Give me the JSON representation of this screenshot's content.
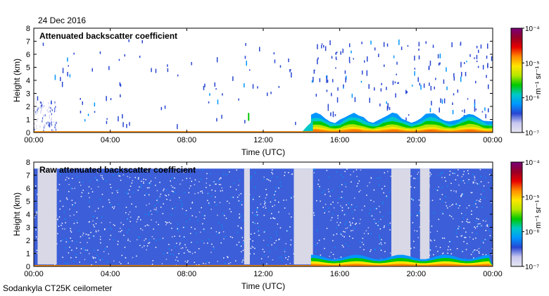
{
  "header": {
    "date": "24 Dec 2016"
  },
  "footer": {
    "instrument": "Sodankyla CT25K ceilometer"
  },
  "colorscale": {
    "stops": [
      "#e6e6f2",
      "#c8c8f0",
      "#2846d2",
      "#0096ff",
      "#00c8c8",
      "#00c800",
      "#b4e600",
      "#ffe600",
      "#ff8c00",
      "#e60000",
      "#960028",
      "#780078"
    ],
    "min_exponent": -7,
    "max_exponent": -4
  },
  "chart_data": [
    {
      "type": "heatmap",
      "title": "Attenuated backscatter coefficient",
      "xlabel": "Time (UTC)",
      "ylabel": "Height (km)",
      "x_ticks": [
        "00:00",
        "04:00",
        "08:00",
        "12:00",
        "16:00",
        "20:00",
        "00:00"
      ],
      "y_ticks": [
        "0",
        "1",
        "2",
        "3",
        "4",
        "5",
        "6",
        "7",
        "8"
      ],
      "xlim_hours": [
        0,
        24
      ],
      "ylim_km": [
        0,
        8
      ],
      "colorbar": {
        "ticks": [
          "10⁻⁷",
          "10⁻⁶",
          "10⁻⁵",
          "10⁻⁴"
        ],
        "label": "m⁻¹ sr⁻¹",
        "scale": "log",
        "range": [
          1e-07,
          0.0001
        ]
      },
      "features": {
        "boundary_layer_top_km": 0.1,
        "cloud_layer_after_hour": 14.5,
        "cloud_layer_top_km": 1.4,
        "precipitation_streaks_hours": [
          14.5,
          24
        ]
      },
      "grid": false
    },
    {
      "type": "heatmap",
      "title": "Raw attenuated backscatter coefficient",
      "xlabel": "Time (UTC)",
      "ylabel": "Height (km)",
      "x_ticks": [
        "00:00",
        "04:00",
        "08:00",
        "12:00",
        "16:00",
        "20:00",
        "00:00"
      ],
      "y_ticks": [
        "0",
        "1",
        "2",
        "3",
        "4",
        "5",
        "6",
        "7",
        "8"
      ],
      "xlim_hours": [
        0,
        24
      ],
      "ylim_km": [
        0,
        8
      ],
      "colorbar": {
        "ticks": [
          "10⁻⁷",
          "10⁻⁶",
          "10⁻⁵",
          "10⁻⁴"
        ],
        "label": "m⁻¹ sr⁻¹",
        "scale": "log",
        "range": [
          1e-07,
          0.0001
        ]
      },
      "features": {
        "noise_top_km": 7.5,
        "data_gaps_hours": [
          [
            0.2,
            1.2
          ],
          [
            11.0,
            11.3
          ],
          [
            13.6,
            14.6
          ],
          [
            18.7,
            19.7
          ],
          [
            20.2,
            20.7
          ]
        ]
      },
      "grid": false
    }
  ]
}
